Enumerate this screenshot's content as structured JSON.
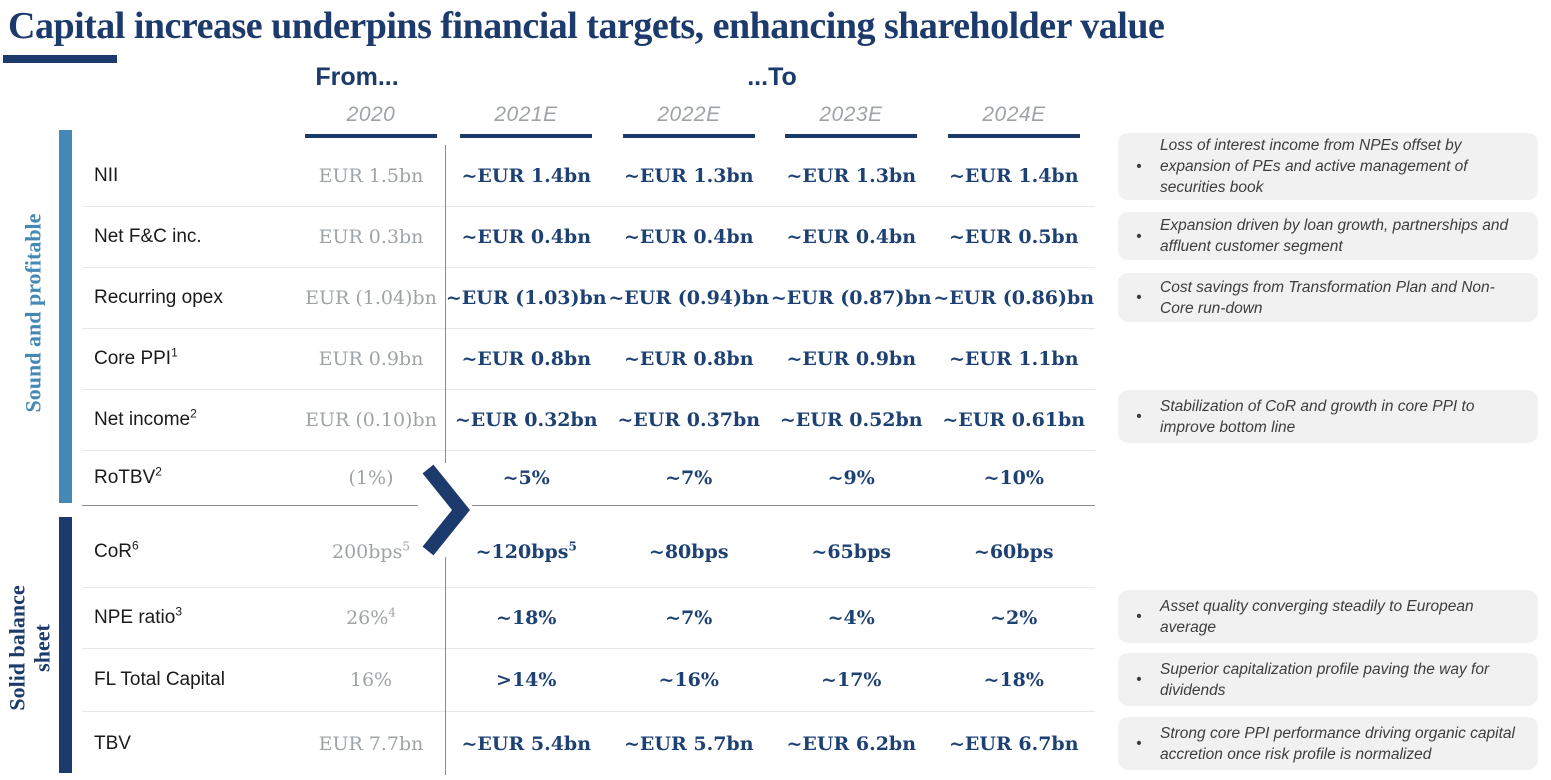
{
  "title": "Capital increase underpins financial targets, enhancing shareholder value",
  "header": {
    "from_label": "From...",
    "to_label": "...To",
    "columns": [
      "2020",
      "2021E",
      "2022E",
      "2023E",
      "2024E"
    ]
  },
  "sections": [
    {
      "label": "Sound and profitable",
      "rows": [
        {
          "label": "NII",
          "label_sup": "",
          "from": "EUR 1.5bn",
          "from_sup": "",
          "values": [
            {
              "text": "~EUR 1.4bn",
              "sup": ""
            },
            {
              "text": "~EUR 1.3bn",
              "sup": ""
            },
            {
              "text": "~EUR 1.3bn",
              "sup": ""
            },
            {
              "text": "~EUR 1.4bn",
              "sup": ""
            }
          ]
        },
        {
          "label": "Net F&C inc.",
          "label_sup": "",
          "from": "EUR 0.3bn",
          "from_sup": "",
          "values": [
            {
              "text": "~EUR 0.4bn",
              "sup": ""
            },
            {
              "text": "~EUR 0.4bn",
              "sup": ""
            },
            {
              "text": "~EUR 0.4bn",
              "sup": ""
            },
            {
              "text": "~EUR 0.5bn",
              "sup": ""
            }
          ]
        },
        {
          "label": "Recurring opex",
          "label_sup": "",
          "from": "EUR (1.04)bn",
          "from_sup": "",
          "values": [
            {
              "text": "~EUR (1.03)bn",
              "sup": ""
            },
            {
              "text": "~EUR (0.94)bn",
              "sup": ""
            },
            {
              "text": "~EUR (0.87)bn",
              "sup": ""
            },
            {
              "text": "~EUR (0.86)bn",
              "sup": ""
            }
          ]
        },
        {
          "label": "Core PPI",
          "label_sup": "1",
          "from": "EUR 0.9bn",
          "from_sup": "",
          "values": [
            {
              "text": "~EUR 0.8bn",
              "sup": ""
            },
            {
              "text": "~EUR 0.8bn",
              "sup": ""
            },
            {
              "text": "~EUR 0.9bn",
              "sup": ""
            },
            {
              "text": "~EUR 1.1bn",
              "sup": ""
            }
          ]
        },
        {
          "label": "Net income",
          "label_sup": "2",
          "from": "EUR (0.10)bn",
          "from_sup": "",
          "values": [
            {
              "text": "~EUR 0.32bn",
              "sup": ""
            },
            {
              "text": "~EUR 0.37bn",
              "sup": ""
            },
            {
              "text": "~EUR 0.52bn",
              "sup": ""
            },
            {
              "text": "~EUR 0.61bn",
              "sup": ""
            }
          ]
        },
        {
          "label": "RoTBV",
          "label_sup": "2",
          "from": "(1%)",
          "from_sup": "",
          "values": [
            {
              "text": "~5%",
              "sup": ""
            },
            {
              "text": "~7%",
              "sup": ""
            },
            {
              "text": "~9%",
              "sup": ""
            },
            {
              "text": "~10%",
              "sup": ""
            }
          ]
        }
      ]
    },
    {
      "label": "Solid balance sheet",
      "rows": [
        {
          "label": "CoR",
          "label_sup": "6",
          "from": "200bps",
          "from_sup": "5",
          "values": [
            {
              "text": "~120bps",
              "sup": "5"
            },
            {
              "text": "~80bps",
              "sup": ""
            },
            {
              "text": "~65bps",
              "sup": ""
            },
            {
              "text": "~60bps",
              "sup": ""
            }
          ]
        },
        {
          "label": "NPE ratio",
          "label_sup": "3",
          "from": "26%",
          "from_sup": "4",
          "values": [
            {
              "text": "~18%",
              "sup": ""
            },
            {
              "text": "~7%",
              "sup": ""
            },
            {
              "text": "~4%",
              "sup": ""
            },
            {
              "text": "~2%",
              "sup": ""
            }
          ]
        },
        {
          "label": "FL Total Capital",
          "label_sup": "",
          "from": "16%",
          "from_sup": "",
          "values": [
            {
              "text": ">14%",
              "sup": ""
            },
            {
              "text": "~16%",
              "sup": ""
            },
            {
              "text": "~17%",
              "sup": ""
            },
            {
              "text": "~18%",
              "sup": ""
            }
          ]
        },
        {
          "label": "TBV",
          "label_sup": "",
          "from": "EUR 7.7bn",
          "from_sup": "",
          "values": [
            {
              "text": "~EUR 5.4bn",
              "sup": ""
            },
            {
              "text": "~EUR 5.7bn",
              "sup": ""
            },
            {
              "text": "~EUR 6.2bn",
              "sup": ""
            },
            {
              "text": "~EUR 6.7bn",
              "sup": ""
            }
          ]
        }
      ]
    }
  ],
  "callouts": [
    {
      "bullet": "•",
      "text": "Loss of interest income from NPEs offset by expansion of PEs and active management of securities book"
    },
    {
      "bullet": "•",
      "text": "Expansion driven by loan growth, partnerships and affluent customer segment"
    },
    {
      "bullet": "•",
      "text": "Cost savings from Transformation Plan and Non-Core run-down"
    },
    {
      "bullet": "•",
      "text": "Stabilization of CoR and growth in core PPI to improve bottom line"
    },
    {
      "bullet": "•",
      "text": "Asset quality converging steadily to European average"
    },
    {
      "bullet": "•",
      "text": "Superior capitalization profile paving the way for dividends"
    },
    {
      "bullet": "•",
      "text": "Strong core PPI performance driving organic capital accretion once risk profile is normalized"
    }
  ],
  "colors": {
    "navy": "#1C3A6B",
    "value_navy": "#1E4173",
    "light_blue": "#4489B5",
    "muted_gray_text": "#9EA3A8",
    "callout_bg": "#F1F1F1",
    "row_divider": "#E8E8E8"
  }
}
